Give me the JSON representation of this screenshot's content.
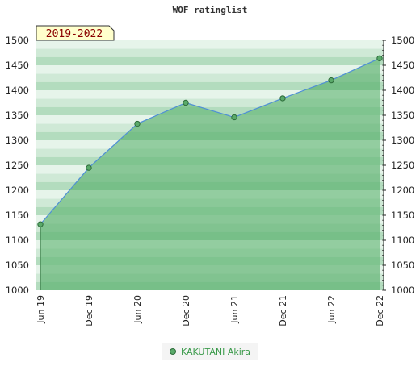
{
  "chart_data": {
    "type": "area",
    "title": "WOF ratinglist",
    "period_badge": "2019-2022",
    "x": [
      "Jun 19",
      "Dec 19",
      "Jun 20",
      "Dec 20",
      "Jun 21",
      "Dec 21",
      "Jun 22",
      "Dec 22"
    ],
    "ylim": [
      1000,
      1500
    ],
    "yticks": [
      1000,
      1050,
      1100,
      1150,
      1200,
      1250,
      1300,
      1350,
      1400,
      1450,
      1500
    ],
    "series": [
      {
        "name": "KAKUTANI Akira",
        "values": [
          1132,
          1245,
          1333,
          1375,
          1346,
          1384,
          1420,
          1464
        ]
      }
    ],
    "legend_position": "bottom-center",
    "grid": true,
    "colors": {
      "area_fill": "#5fb573",
      "line": "#4f8fd6",
      "marker_fill": "#5aaa6a",
      "marker_stroke": "#2d6b3a",
      "badge_bg": "#ffffcc",
      "badge_text": "#8b0000"
    }
  }
}
